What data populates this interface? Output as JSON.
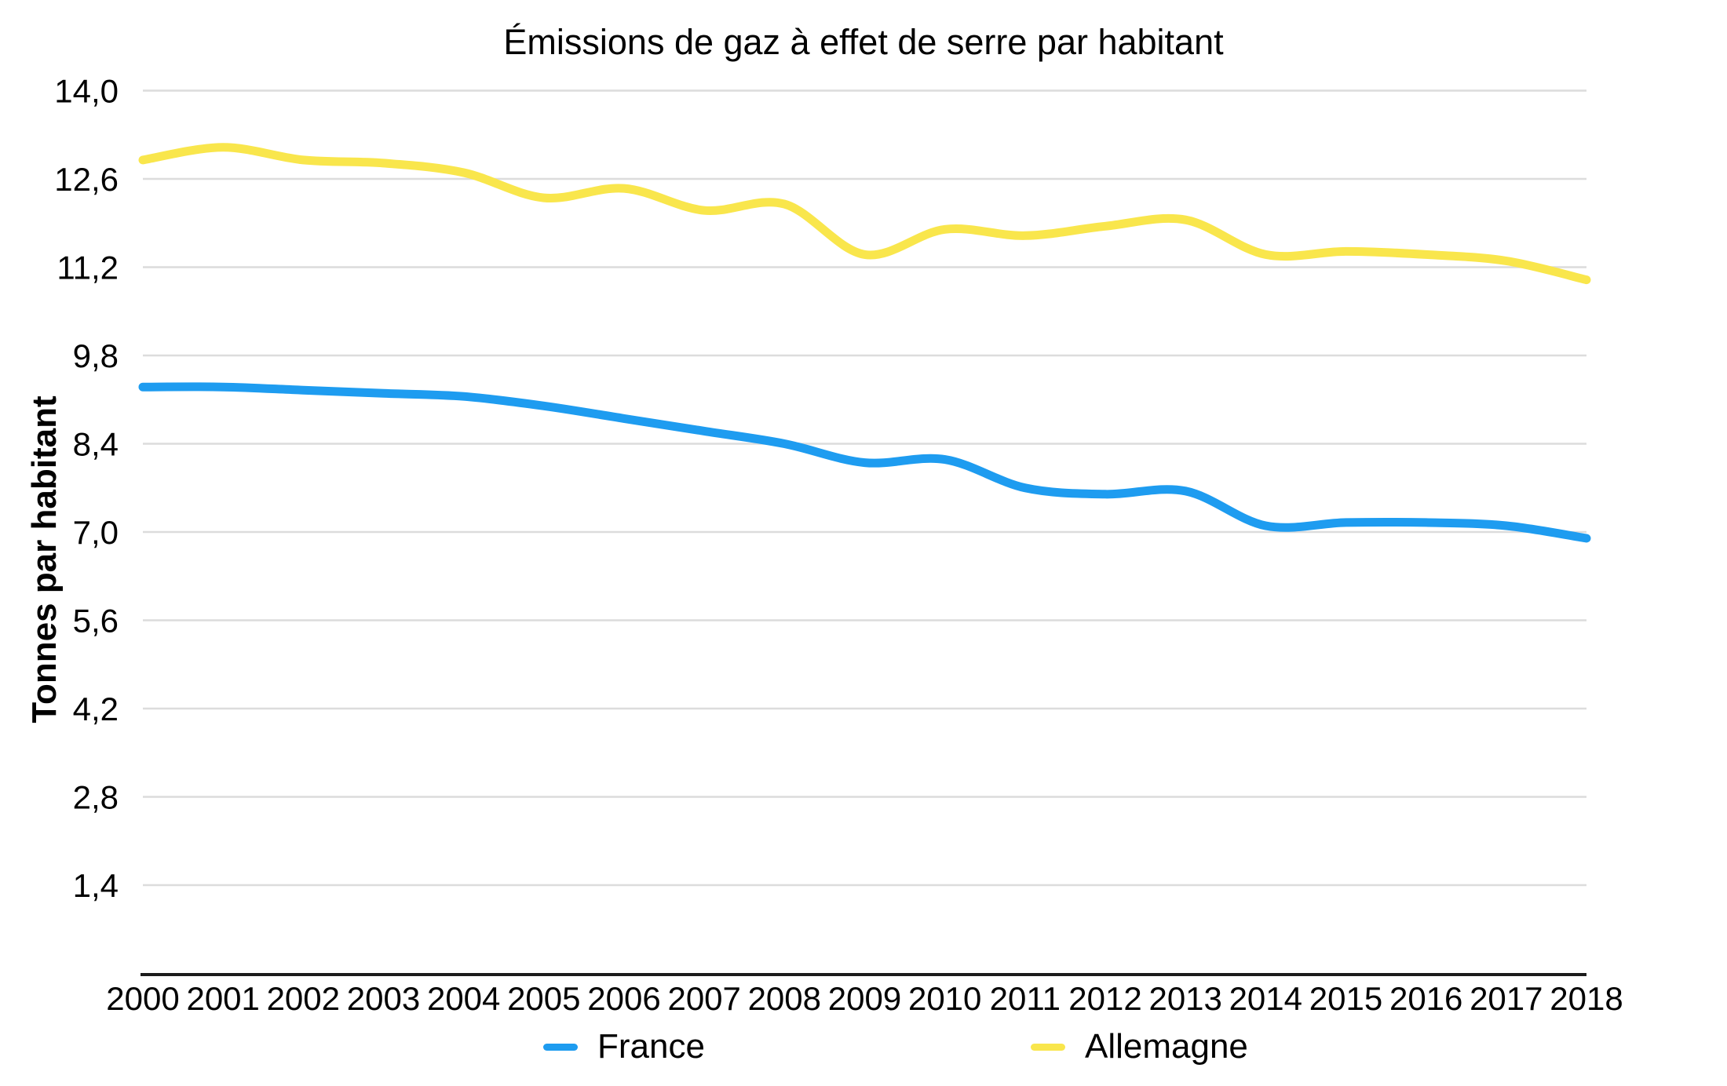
{
  "chart_data": {
    "type": "line",
    "title": "Émissions de gaz à effet de serre par habitant",
    "xlabel": "",
    "ylabel": "Tonnes par habitant",
    "x": [
      2000,
      2001,
      2002,
      2003,
      2004,
      2005,
      2006,
      2007,
      2008,
      2009,
      2010,
      2011,
      2012,
      2013,
      2014,
      2015,
      2016,
      2017,
      2018
    ],
    "x_tick_labels": [
      "2000",
      "2001",
      "2002",
      "2003",
      "2004",
      "2005",
      "2006",
      "2007",
      "2008",
      "2009",
      "2010",
      "2011",
      "2012",
      "2013",
      "2014",
      "2015",
      "2016",
      "2017",
      "2018"
    ],
    "series": [
      {
        "name": "France",
        "color": "#1E9CF0",
        "values": [
          9.3,
          9.3,
          9.25,
          9.2,
          9.15,
          9.0,
          8.8,
          8.6,
          8.4,
          8.1,
          8.15,
          7.7,
          7.6,
          7.65,
          7.1,
          7.15,
          7.15,
          7.1,
          6.9
        ]
      },
      {
        "name": "Allemagne",
        "color": "#F9E64C",
        "values": [
          12.9,
          13.1,
          12.9,
          12.85,
          12.7,
          12.3,
          12.45,
          12.1,
          12.2,
          11.4,
          11.8,
          11.7,
          11.85,
          11.95,
          11.4,
          11.45,
          11.4,
          11.3,
          11.0
        ]
      }
    ],
    "y_ticks": [
      {
        "value": 14.0,
        "label": "14,0"
      },
      {
        "value": 12.6,
        "label": "12,6"
      },
      {
        "value": 11.2,
        "label": "11,2"
      },
      {
        "value": 9.8,
        "label": "9,8"
      },
      {
        "value": 8.4,
        "label": "8,4"
      },
      {
        "value": 7.0,
        "label": "7,0"
      },
      {
        "value": 5.6,
        "label": "5,6"
      },
      {
        "value": 4.2,
        "label": "4,2"
      },
      {
        "value": 2.8,
        "label": "2,8"
      },
      {
        "value": 1.4,
        "label": "1,4"
      }
    ],
    "ylim": [
      0,
      14.4
    ],
    "grid": true,
    "legend_position": "bottom",
    "line_style": "smooth",
    "colors": {
      "gridline": "#DCDCDC",
      "axis_line": "#1B1B1B",
      "text": "#000000",
      "background": "#FFFFFF"
    }
  }
}
